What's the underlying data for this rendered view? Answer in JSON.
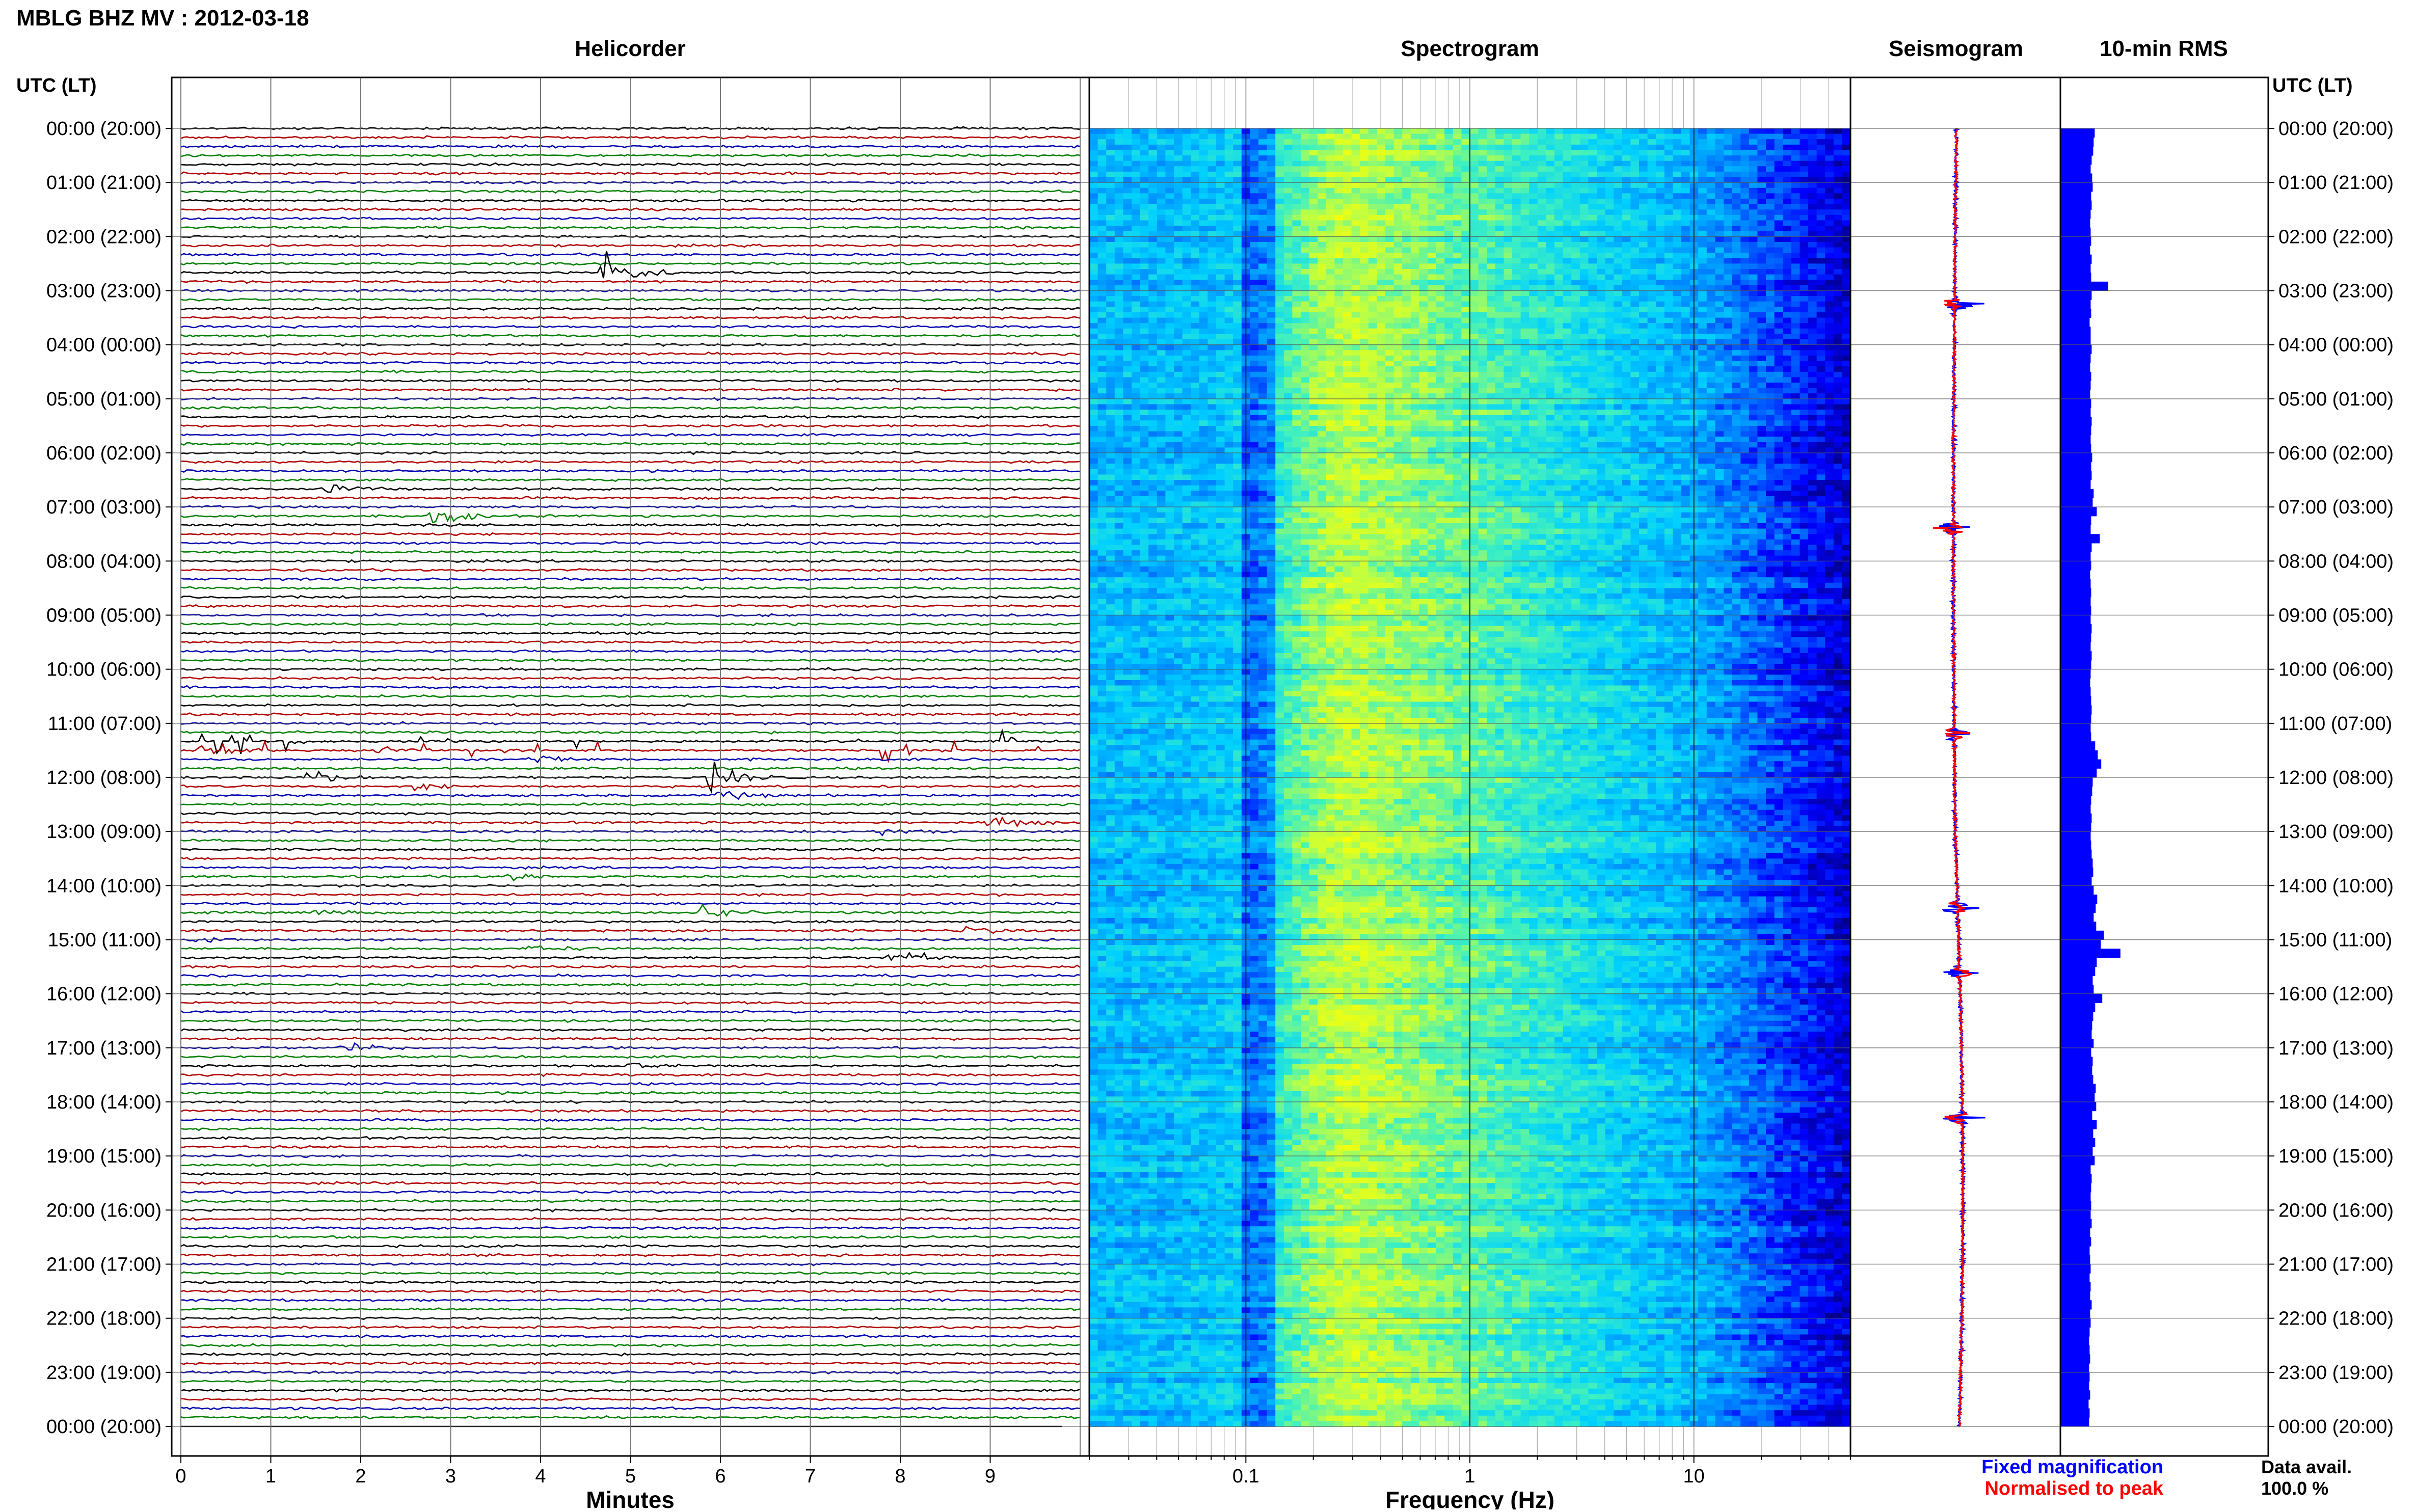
{
  "page_title": "MBLG BHZ MV : 2012-03-18",
  "panel_titles": {
    "helicorder": "Helicorder",
    "spectrogram": "Spectrogram",
    "seismogram": "Seismogram",
    "rms": "10-min RMS"
  },
  "time_axis_title_left": "UTC (LT)",
  "time_axis_title_right": "UTC (LT)",
  "time_labels": [
    "00:00 (20:00)",
    "01:00 (21:00)",
    "02:00 (22:00)",
    "03:00 (23:00)",
    "04:00 (00:00)",
    "05:00 (01:00)",
    "06:00 (02:00)",
    "07:00 (03:00)",
    "08:00 (04:00)",
    "09:00 (05:00)",
    "10:00 (06:00)",
    "11:00 (07:00)",
    "12:00 (08:00)",
    "13:00 (09:00)",
    "14:00 (10:00)",
    "15:00 (11:00)",
    "16:00 (12:00)",
    "17:00 (13:00)",
    "18:00 (14:00)",
    "19:00 (15:00)",
    "20:00 (16:00)",
    "21:00 (17:00)",
    "22:00 (18:00)",
    "23:00 (19:00)",
    "00:00 (20:00)"
  ],
  "legend": {
    "fixed": "Fixed magnification",
    "normalised": "Normalised to peak",
    "fixed_color": "#0000ff",
    "normalised_color": "#ff0000"
  },
  "data_avail": {
    "label": "Data avail.",
    "value": "100.0 %"
  },
  "chart_data": [
    {
      "type": "line",
      "panel": "helicorder",
      "title": "Helicorder",
      "xlabel": "Minutes",
      "x_ticks": [
        "0",
        "1",
        "2",
        "3",
        "4",
        "5",
        "6",
        "7",
        "8",
        "9"
      ],
      "xlim": [
        0,
        10
      ],
      "row_minutes": 10,
      "trace_colors": [
        "#000000",
        "#b00000",
        "#0000b0",
        "#008000"
      ],
      "events": [
        {
          "row": 16,
          "minute": 4.7,
          "amp": 5.5
        },
        {
          "row": 40,
          "minute": 1.6,
          "amp": 1.5
        },
        {
          "row": 43,
          "minute": 2.8,
          "amp": 2.2
        },
        {
          "row": 69,
          "minute": 0.2,
          "amp": 1.2
        },
        {
          "row": 69,
          "minute": 2.2,
          "amp": 0.6
        },
        {
          "row": 70,
          "minute": 3.9,
          "amp": 1.5
        },
        {
          "row": 72,
          "minute": 1.4,
          "amp": 1.8
        },
        {
          "row": 72,
          "minute": 5.9,
          "amp": 3.5
        },
        {
          "row": 73,
          "minute": 2.6,
          "amp": 0.8
        },
        {
          "row": 74,
          "minute": 6.0,
          "amp": 1.2
        },
        {
          "row": 77,
          "minute": 9.0,
          "amp": 1.8
        },
        {
          "row": 78,
          "minute": 7.8,
          "amp": 1.0
        },
        {
          "row": 83,
          "minute": 3.6,
          "amp": 1.1
        },
        {
          "row": 87,
          "minute": 1.5,
          "amp": 0.7
        },
        {
          "row": 87,
          "minute": 5.8,
          "amp": 1.7
        },
        {
          "row": 89,
          "minute": 8.7,
          "amp": 1.0
        },
        {
          "row": 90,
          "minute": 0.1,
          "amp": 0.8
        },
        {
          "row": 91,
          "minute": 3.9,
          "amp": 1.0
        },
        {
          "row": 92,
          "minute": 7.9,
          "amp": 2.2
        },
        {
          "row": 102,
          "minute": 1.8,
          "amp": 1.0
        },
        {
          "row": 104,
          "minute": 5.0,
          "amp": 0.7
        }
      ],
      "spike_rows": [
        68,
        69
      ]
    },
    {
      "type": "heatmap",
      "panel": "spectrogram",
      "title": "Spectrogram",
      "xlabel": "Frequency (Hz)",
      "x_scale": "log",
      "xlim": [
        0.02,
        50
      ],
      "x_ticks": [
        0.1,
        1,
        10
      ],
      "x_tick_labels": [
        "0.1",
        "1",
        "10"
      ],
      "colormap": [
        "#04008a",
        "#0000ff",
        "#0080ff",
        "#00d0ff",
        "#3ff0c0",
        "#c0ff40",
        "#ffff00"
      ],
      "peak_band_hz": [
        0.2,
        0.4
      ],
      "dark_band_hz": [
        0.09,
        0.13
      ]
    },
    {
      "type": "line",
      "panel": "seismogram",
      "title": "Seismogram",
      "series": [
        {
          "name": "Fixed magnification",
          "color": "#0000ff"
        },
        {
          "name": "Normalised to peak",
          "color": "#ff0000"
        }
      ],
      "bursts_hours": [
        3.25,
        7.4,
        11.2,
        14.4,
        15.6,
        18.3
      ]
    },
    {
      "type": "bar",
      "panel": "rms",
      "title": "10-min RMS",
      "orientation": "horizontal",
      "color": "#0000ff",
      "bins_per_hour": 6,
      "values": [
        6.8,
        6.6,
        6.5,
        6.2,
        6.0,
        6.3,
        6.4,
        6.1,
        6.2,
        6.0,
        5.9,
        6.0,
        6.1,
        5.9,
        6.2,
        6.0,
        6.1,
        9.5,
        6.2,
        6.0,
        6.1,
        5.8,
        6.0,
        6.0,
        6.2,
        6.0,
        5.9,
        6.1,
        6.0,
        5.9,
        6.1,
        6.0,
        6.2,
        6.1,
        6.0,
        6.1,
        6.3,
        6.1,
        6.2,
        6.0,
        6.6,
        6.4,
        7.2,
        6.1,
        6.0,
        7.8,
        6.2,
        6.0,
        6.1,
        5.9,
        6.0,
        6.1,
        6.0,
        6.1,
        6.0,
        6.2,
        6.1,
        6.0,
        6.2,
        6.1,
        6.0,
        5.9,
        6.0,
        6.1,
        6.2,
        6.1,
        6.0,
        6.1,
        6.9,
        7.4,
        8.1,
        7.2,
        6.4,
        6.3,
        6.1,
        6.0,
        6.2,
        6.1,
        6.0,
        6.1,
        6.2,
        6.4,
        6.5,
        6.2,
        6.6,
        7.3,
        7.0,
        6.6,
        7.1,
        8.6,
        8.0,
        11.9,
        7.2,
        6.9,
        6.4,
        6.6,
        8.3,
        6.9,
        6.5,
        6.3,
        6.2,
        6.6,
        6.1,
        6.4,
        6.3,
        6.5,
        7.0,
        6.8,
        7.1,
        6.3,
        7.2,
        6.5,
        6.9,
        6.4,
        6.8,
        6.0,
        6.2,
        6.1,
        6.0,
        6.1,
        6.0,
        6.2,
        5.9,
        6.1,
        5.8,
        5.9,
        6.0,
        5.8,
        6.0,
        5.9,
        6.2,
        5.9,
        6.0,
        5.8,
        5.7,
        5.8,
        5.9,
        5.7,
        5.8,
        5.7,
        5.9,
        5.6,
        5.8,
        5.7
      ]
    }
  ]
}
